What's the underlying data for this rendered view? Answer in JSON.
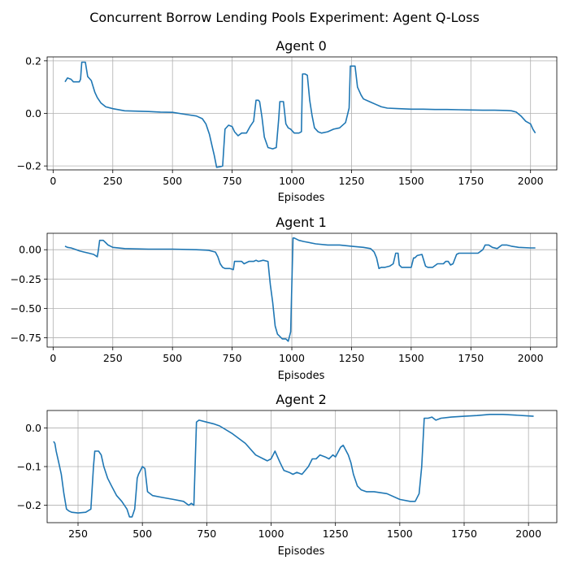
{
  "suptitle": "Concurrent Borrow Lending Pools Experiment: Agent Q-Loss",
  "chart_data": [
    {
      "type": "line",
      "title": "Agent 0",
      "xlabel": "Episodes",
      "ylabel": "",
      "xlim": [
        -25,
        2110
      ],
      "ylim": [
        -0.215,
        0.215
      ],
      "xticks": [
        0,
        250,
        500,
        750,
        1000,
        1250,
        1500,
        1750,
        2000
      ],
      "yticks": [
        -0.2,
        0.0,
        0.2
      ],
      "ytick_labels": [
        "−0.2",
        "0.0",
        "0.2"
      ],
      "grid": true,
      "color": "#1f77b4",
      "x": [
        50,
        60,
        75,
        85,
        95,
        110,
        115,
        120,
        135,
        145,
        160,
        175,
        185,
        200,
        220,
        250,
        300,
        400,
        450,
        500,
        550,
        600,
        625,
        640,
        655,
        665,
        675,
        685,
        700,
        710,
        720,
        735,
        750,
        760,
        775,
        790,
        810,
        825,
        840,
        850,
        860,
        865,
        875,
        885,
        900,
        920,
        935,
        945,
        950,
        965,
        975,
        985,
        995,
        1010,
        1030,
        1040,
        1045,
        1055,
        1065,
        1075,
        1085,
        1095,
        1110,
        1125,
        1150,
        1175,
        1200,
        1225,
        1240,
        1245,
        1250,
        1265,
        1275,
        1290,
        1300,
        1325,
        1350,
        1375,
        1400,
        1450,
        1500,
        1550,
        1600,
        1650,
        1700,
        1750,
        1800,
        1850,
        1900,
        1920,
        1940,
        1960,
        1980,
        2000,
        2010,
        2020
      ],
      "y": [
        0.12,
        0.135,
        0.13,
        0.12,
        0.12,
        0.12,
        0.13,
        0.195,
        0.195,
        0.14,
        0.125,
        0.08,
        0.06,
        0.04,
        0.025,
        0.018,
        0.01,
        0.007,
        0.005,
        0.004,
        -0.003,
        -0.01,
        -0.02,
        -0.04,
        -0.08,
        -0.12,
        -0.16,
        -0.205,
        -0.203,
        -0.2,
        -0.06,
        -0.045,
        -0.05,
        -0.07,
        -0.085,
        -0.075,
        -0.075,
        -0.05,
        -0.03,
        0.05,
        0.05,
        0.045,
        -0.015,
        -0.09,
        -0.13,
        -0.135,
        -0.13,
        -0.02,
        0.045,
        0.045,
        -0.04,
        -0.055,
        -0.06,
        -0.075,
        -0.075,
        -0.07,
        0.15,
        0.15,
        0.145,
        0.05,
        -0.01,
        -0.055,
        -0.07,
        -0.075,
        -0.07,
        -0.06,
        -0.055,
        -0.035,
        0.02,
        0.18,
        0.18,
        0.18,
        0.1,
        0.07,
        0.055,
        0.045,
        0.035,
        0.025,
        0.02,
        0.018,
        0.016,
        0.016,
        0.015,
        0.015,
        0.014,
        0.013,
        0.012,
        0.012,
        0.011,
        0.01,
        0.005,
        -0.01,
        -0.03,
        -0.04,
        -0.06,
        -0.075
      ]
    },
    {
      "type": "line",
      "title": "Agent 1",
      "xlabel": "Episodes",
      "ylabel": "",
      "xlim": [
        -25,
        2110
      ],
      "ylim": [
        -0.83,
        0.14
      ],
      "xticks": [
        0,
        250,
        500,
        750,
        1000,
        1250,
        1500,
        1750,
        2000
      ],
      "yticks": [
        -0.75,
        -0.5,
        -0.25,
        0.0
      ],
      "ytick_labels": [
        "−0.75",
        "−0.50",
        "−0.25",
        "0.00"
      ],
      "grid": true,
      "color": "#1f77b4",
      "x": [
        50,
        60,
        75,
        90,
        110,
        130,
        150,
        170,
        185,
        190,
        195,
        200,
        210,
        220,
        230,
        250,
        300,
        400,
        500,
        600,
        650,
        680,
        690,
        700,
        710,
        720,
        740,
        755,
        760,
        770,
        790,
        800,
        820,
        840,
        850,
        860,
        880,
        900,
        905,
        910,
        920,
        930,
        940,
        960,
        975,
        985,
        995,
        1000,
        1005,
        1010,
        1030,
        1050,
        1100,
        1150,
        1200,
        1250,
        1300,
        1330,
        1345,
        1355,
        1365,
        1375,
        1390,
        1410,
        1425,
        1435,
        1440,
        1445,
        1450,
        1460,
        1480,
        1500,
        1510,
        1515,
        1525,
        1545,
        1560,
        1570,
        1590,
        1610,
        1625,
        1635,
        1645,
        1655,
        1665,
        1675,
        1690,
        1700,
        1720,
        1750,
        1780,
        1800,
        1810,
        1825,
        1840,
        1860,
        1880,
        1900,
        1920,
        1950,
        2000,
        2020
      ],
      "y": [
        0.03,
        0.02,
        0.015,
        0.005,
        -0.01,
        -0.02,
        -0.03,
        -0.04,
        -0.06,
        0.0,
        0.08,
        0.08,
        0.08,
        0.06,
        0.04,
        0.02,
        0.01,
        0.005,
        0.005,
        0.0,
        -0.005,
        -0.02,
        -0.06,
        -0.12,
        -0.15,
        -0.16,
        -0.16,
        -0.17,
        -0.1,
        -0.1,
        -0.1,
        -0.12,
        -0.1,
        -0.1,
        -0.09,
        -0.1,
        -0.09,
        -0.1,
        -0.2,
        -0.3,
        -0.45,
        -0.65,
        -0.72,
        -0.76,
        -0.76,
        -0.78,
        -0.7,
        -0.3,
        0.1,
        0.1,
        0.08,
        0.07,
        0.05,
        0.04,
        0.04,
        0.03,
        0.02,
        0.01,
        -0.02,
        -0.07,
        -0.16,
        -0.15,
        -0.15,
        -0.14,
        -0.12,
        -0.03,
        -0.03,
        -0.03,
        -0.13,
        -0.15,
        -0.15,
        -0.15,
        -0.07,
        -0.07,
        -0.05,
        -0.04,
        -0.14,
        -0.15,
        -0.15,
        -0.12,
        -0.12,
        -0.12,
        -0.1,
        -0.1,
        -0.13,
        -0.12,
        -0.04,
        -0.03,
        -0.03,
        -0.03,
        -0.03,
        0.0,
        0.04,
        0.04,
        0.02,
        0.01,
        0.04,
        0.04,
        0.03,
        0.02,
        0.015,
        0.015
      ]
    },
    {
      "type": "line",
      "title": "Agent 2",
      "xlabel": "Episodes",
      "ylabel": "",
      "xlim": [
        130,
        2110
      ],
      "ylim": [
        -0.245,
        0.045
      ],
      "xticks": [
        250,
        500,
        750,
        1000,
        1250,
        1500,
        1750,
        2000
      ],
      "yticks": [
        -0.2,
        -0.1,
        0.0
      ],
      "ytick_labels": [
        "−0.2",
        "−0.1",
        "0.0"
      ],
      "grid": true,
      "color": "#1f77b4",
      "x": [
        155,
        160,
        165,
        175,
        185,
        195,
        205,
        215,
        225,
        250,
        280,
        300,
        310,
        315,
        330,
        340,
        350,
        365,
        380,
        400,
        420,
        440,
        450,
        460,
        470,
        475,
        480,
        485,
        500,
        510,
        520,
        540,
        580,
        620,
        660,
        680,
        690,
        700,
        710,
        720,
        750,
        780,
        800,
        850,
        900,
        940,
        970,
        985,
        1000,
        1015,
        1035,
        1050,
        1070,
        1085,
        1100,
        1120,
        1145,
        1160,
        1175,
        1190,
        1210,
        1225,
        1240,
        1250,
        1270,
        1280,
        1300,
        1310,
        1320,
        1335,
        1350,
        1370,
        1400,
        1450,
        1500,
        1540,
        1560,
        1575,
        1585,
        1595,
        1610,
        1625,
        1640,
        1660,
        1700,
        1750,
        1800,
        1850,
        1900,
        1950,
        2000,
        2020
      ],
      "y": [
        -0.035,
        -0.04,
        -0.06,
        -0.09,
        -0.12,
        -0.17,
        -0.21,
        -0.215,
        -0.218,
        -0.22,
        -0.218,
        -0.21,
        -0.1,
        -0.06,
        -0.06,
        -0.07,
        -0.1,
        -0.13,
        -0.15,
        -0.175,
        -0.19,
        -0.21,
        -0.23,
        -0.23,
        -0.21,
        -0.17,
        -0.13,
        -0.12,
        -0.1,
        -0.105,
        -0.165,
        -0.175,
        -0.18,
        -0.185,
        -0.19,
        -0.2,
        -0.195,
        -0.2,
        0.015,
        0.02,
        0.015,
        0.01,
        0.005,
        -0.015,
        -0.04,
        -0.07,
        -0.08,
        -0.085,
        -0.08,
        -0.06,
        -0.09,
        -0.11,
        -0.115,
        -0.12,
        -0.115,
        -0.12,
        -0.1,
        -0.08,
        -0.08,
        -0.07,
        -0.075,
        -0.08,
        -0.07,
        -0.075,
        -0.05,
        -0.045,
        -0.07,
        -0.09,
        -0.12,
        -0.15,
        -0.16,
        -0.165,
        -0.165,
        -0.17,
        -0.185,
        -0.19,
        -0.19,
        -0.17,
        -0.1,
        0.025,
        0.025,
        0.028,
        0.02,
        0.025,
        0.028,
        0.03,
        0.032,
        0.035,
        0.035,
        0.033,
        0.031,
        0.03
      ]
    }
  ]
}
